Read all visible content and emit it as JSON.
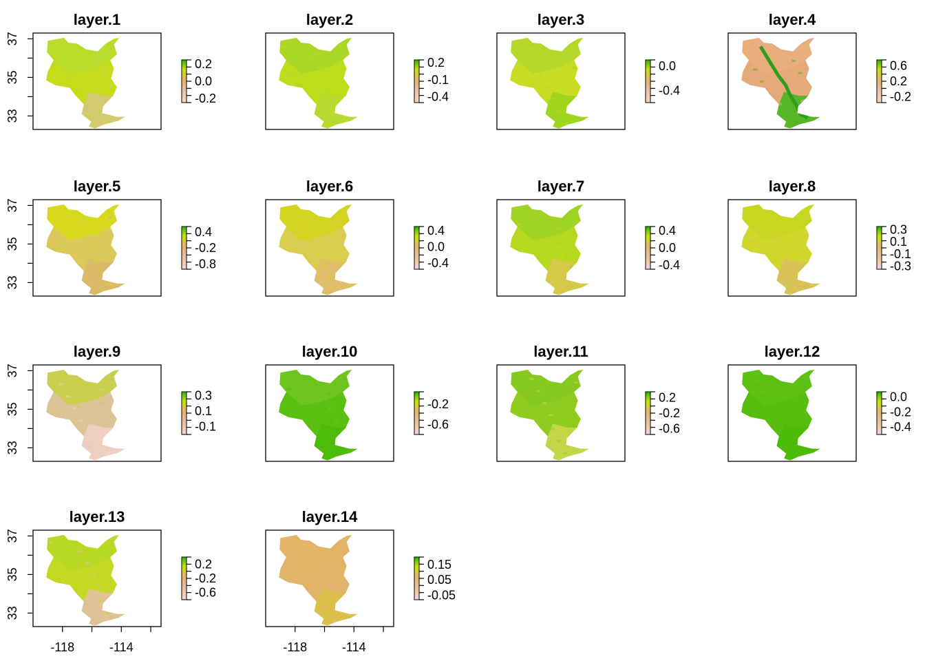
{
  "chart_data": {
    "type": "heatmap",
    "layout": {
      "rows": 4,
      "cols": 4
    },
    "x_ticks": [
      -118,
      -116,
      -114,
      -112
    ],
    "x_tick_labels": [
      "-118",
      "-114"
    ],
    "y_ticks": [
      33,
      34,
      35,
      36,
      37
    ],
    "y_tick_labels": [
      "33",
      "35",
      "37"
    ],
    "xlim": [
      -120,
      -111.3
    ],
    "ylim": [
      32.3,
      37.3
    ],
    "palette": {
      "low": "#f2d8cc",
      "mid": "#e9b07a",
      "high_mid": "#cde100",
      "high": "#3cba00"
    },
    "panels": [
      {
        "title": "layer.1",
        "scale_min": -0.25,
        "scale_max": 0.25,
        "legend_labels": [
          "0.2",
          "0.0",
          "-0.2"
        ],
        "fill": [
          "#b8da2a",
          "#c6dc1a",
          "#d4c875"
        ]
      },
      {
        "title": "layer.2",
        "scale_min": -0.5,
        "scale_max": 0.25,
        "legend_labels": [
          "0.2",
          "-0.1",
          "-0.4"
        ],
        "fill": [
          "#a9d526",
          "#bfdc1a",
          "#b9d830"
        ]
      },
      {
        "title": "layer.3",
        "scale_min": -0.6,
        "scale_max": 0.1,
        "legend_labels": [
          "0.0",
          "-0.4"
        ],
        "fill": [
          "#b4d729",
          "#c8dd22",
          "#9ed41f"
        ]
      },
      {
        "title": "layer.4",
        "scale_min": -0.35,
        "scale_max": 0.75,
        "legend_labels": [
          "0.6",
          "0.2",
          "-0.2"
        ],
        "fill": [
          "#e8ae7b",
          "#e6a97a",
          "#4fb624"
        ]
      },
      {
        "title": "layer.5",
        "scale_min": -1.0,
        "scale_max": 0.6,
        "legend_labels": [
          "0.4",
          "-0.2",
          "-0.8"
        ],
        "fill": [
          "#d7d91a",
          "#dcc859",
          "#d9b86a"
        ]
      },
      {
        "title": "layer.6",
        "scale_min": -0.55,
        "scale_max": 0.5,
        "legend_labels": [
          "0.4",
          "0.0",
          "-0.4"
        ],
        "fill": [
          "#d2d41d",
          "#d9cc4f",
          "#dfbd6c"
        ]
      },
      {
        "title": "layer.7",
        "scale_min": -0.5,
        "scale_max": 0.5,
        "legend_labels": [
          "0.4",
          "0.0",
          "-0.4"
        ],
        "fill": [
          "#9fd425",
          "#b6d81f",
          "#d8c84a"
        ]
      },
      {
        "title": "layer.8",
        "scale_min": -0.35,
        "scale_max": 0.35,
        "legend_labels": [
          "0.3",
          "0.1",
          "-0.1",
          "-0.3"
        ],
        "fill": [
          "#c6d721",
          "#cfd62c",
          "#d8c058"
        ]
      },
      {
        "title": "layer.9",
        "scale_min": -0.2,
        "scale_max": 0.35,
        "legend_labels": [
          "0.3",
          "0.1",
          "-0.1"
        ],
        "fill": [
          "#c8cf4a",
          "#dcc497",
          "#efd0c3"
        ]
      },
      {
        "title": "layer.10",
        "scale_min": -0.8,
        "scale_max": 0.05,
        "legend_labels": [
          "-0.2",
          "-0.6"
        ],
        "fill": [
          "#6ec41d",
          "#59bf10",
          "#4cbb0a"
        ]
      },
      {
        "title": "layer.11",
        "scale_min": -0.75,
        "scale_max": 0.35,
        "legend_labels": [
          "0.2",
          "-0.2",
          "-0.6"
        ],
        "fill": [
          "#86c921",
          "#8fcc1f",
          "#c6d64a"
        ]
      },
      {
        "title": "layer.12",
        "scale_min": -0.5,
        "scale_max": 0.07,
        "legend_labels": [
          "0.0",
          "-0.2",
          "-0.4"
        ],
        "fill": [
          "#5fc014",
          "#56bd0e",
          "#4cba08"
        ]
      },
      {
        "title": "layer.13",
        "scale_min": -0.8,
        "scale_max": 0.4,
        "legend_labels": [
          "0.2",
          "-0.2",
          "-0.6"
        ],
        "fill": [
          "#b7d924",
          "#c4d826",
          "#e2c19d"
        ]
      },
      {
        "title": "layer.14",
        "scale_min": -0.08,
        "scale_max": 0.2,
        "legend_labels": [
          "0.15",
          "0.05",
          "-0.05"
        ],
        "fill": [
          "#e3b367",
          "#e0b56b",
          "#d9c048"
        ]
      }
    ]
  }
}
